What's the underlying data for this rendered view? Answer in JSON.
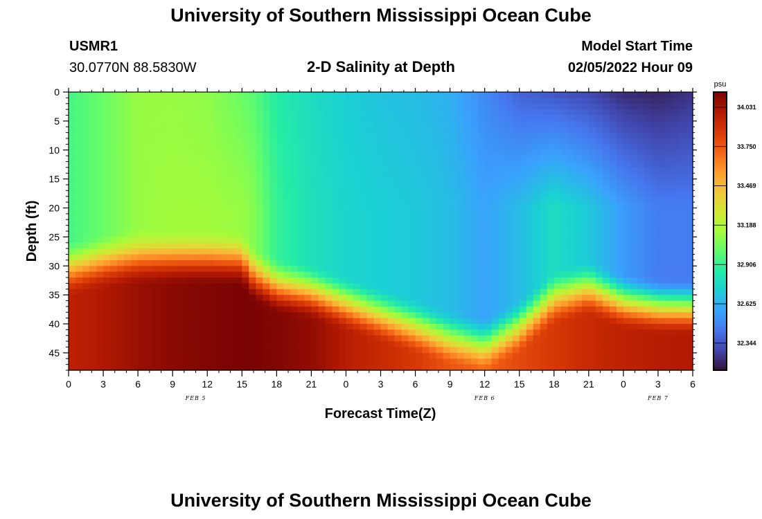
{
  "header": {
    "title": "University of Southern Mississippi Ocean Cube",
    "station_id": "USMR1",
    "coords": "30.0770N  88.5830W",
    "subtitle": "2-D Salinity at Depth",
    "model_start_label": "Model Start Time",
    "model_start_value": "02/05/2022 Hour 09"
  },
  "footer": {
    "title_repeat": "University of Southern Mississippi Ocean Cube"
  },
  "chart_data": {
    "type": "heatmap",
    "title": "2-D Salinity at Depth",
    "xlabel": "Forecast Time(Z)",
    "ylabel": "Depth (ft)",
    "x_tick_labels": [
      "0",
      "3",
      "6",
      "9",
      "12",
      "15",
      "18",
      "21",
      "0",
      "3",
      "6",
      "9",
      "12",
      "15",
      "18",
      "21",
      "0",
      "3",
      "6"
    ],
    "x_hours": [
      0,
      3,
      6,
      9,
      12,
      15,
      18,
      21,
      24,
      27,
      30,
      33,
      36,
      39,
      42,
      45,
      48,
      51,
      54
    ],
    "xlim": [
      0,
      54
    ],
    "date_labels": [
      {
        "text": "FEB 5",
        "hour": 11
      },
      {
        "text": "FEB 6",
        "hour": 36
      },
      {
        "text": "FEB 7",
        "hour": 51
      }
    ],
    "y_ticks": [
      0,
      5,
      10,
      15,
      20,
      25,
      30,
      35,
      40,
      45
    ],
    "ylim": [
      0,
      48
    ],
    "y_inverted": true,
    "colorbar": {
      "unit": "psu",
      "min": 32.15,
      "max": 34.14,
      "tick_values": [
        "34.031",
        "33.750",
        "33.469",
        "33.188",
        "32.906",
        "32.625",
        "32.344"
      ],
      "colormap": [
        "#30123b",
        "#4145ab",
        "#4675ed",
        "#39a2fc",
        "#1bcfd4",
        "#24eca6",
        "#61fc6c",
        "#a4fc3b",
        "#d1e834",
        "#f3c63a",
        "#fe9b2d",
        "#f36315",
        "#d93806",
        "#b11901",
        "#7a0403"
      ]
    },
    "profiles": {
      "time_hours": [
        0,
        3,
        6,
        9,
        12,
        15,
        16,
        18,
        21,
        24,
        27,
        30,
        33,
        36,
        39,
        42,
        45,
        48,
        51,
        54
      ],
      "upper_salinity_0ft": [
        32.94,
        33.02,
        33.12,
        33.12,
        33.1,
        33.02,
        32.98,
        32.86,
        32.78,
        32.72,
        32.68,
        32.66,
        32.62,
        32.5,
        32.38,
        32.34,
        32.3,
        32.22,
        32.2,
        32.24
      ],
      "mid_salinity_20ft": [
        32.94,
        33.02,
        33.12,
        33.14,
        33.14,
        33.12,
        33.08,
        32.9,
        32.8,
        32.74,
        32.72,
        32.7,
        32.66,
        32.58,
        32.66,
        32.78,
        32.7,
        32.56,
        32.46,
        32.46
      ],
      "halocline_depth_ft": [
        30.5,
        29.2,
        28.5,
        28.5,
        28.5,
        28.8,
        31.5,
        33.5,
        34.5,
        36.5,
        38.5,
        40.5,
        42.5,
        43.8,
        40.5,
        35.5,
        33.8,
        36.2,
        37,
        37.2
      ],
      "bottom_salinity_48ft": [
        33.96,
        34.0,
        34.06,
        34.1,
        34.12,
        34.14,
        34.14,
        34.12,
        34.08,
        33.98,
        33.92,
        33.86,
        33.76,
        33.72,
        33.8,
        33.86,
        33.92,
        33.96,
        33.98,
        34.0
      ]
    }
  }
}
